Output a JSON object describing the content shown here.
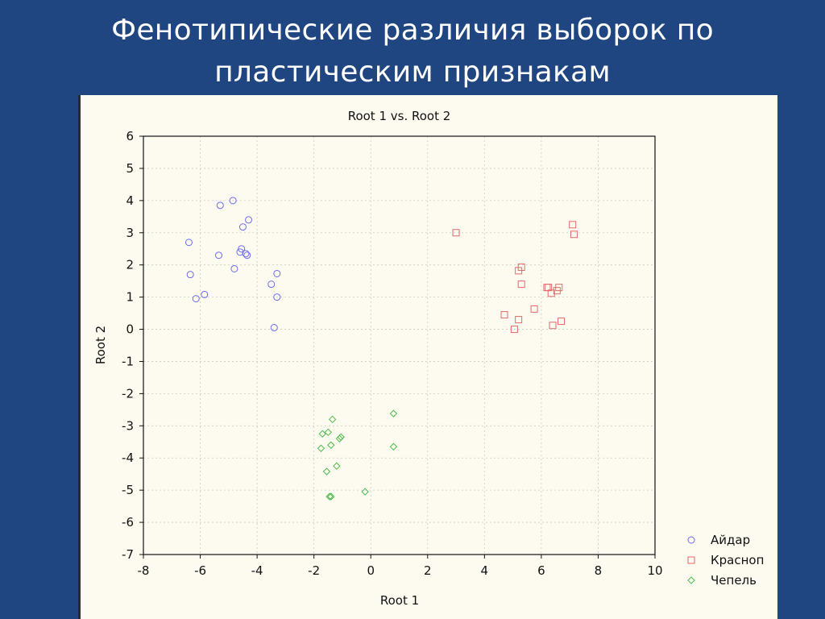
{
  "slide": {
    "title_line1": "Фенотипические различия выборок по",
    "title_line2": "пластическим признакам",
    "background_color": "#1f4680"
  },
  "chart_data": {
    "type": "scatter",
    "title": "Root 1 vs. Root 2",
    "xlabel": "Root 1",
    "ylabel": "Root 2",
    "xlim": [
      -8,
      10
    ],
    "ylim": [
      -7,
      6
    ],
    "xticks": [
      "-8",
      "-6",
      "-4",
      "-2",
      "0",
      "2",
      "4",
      "6",
      "8",
      "10"
    ],
    "yticks": [
      "6",
      "5",
      "4",
      "3",
      "2",
      "1",
      "0",
      "-1",
      "-2",
      "-3",
      "-4",
      "-5",
      "-6",
      "-7"
    ],
    "grid": true,
    "legend_position": "bottom-right",
    "series": [
      {
        "name": "Айдар",
        "marker": "circle",
        "color": "#6b6bef",
        "points": [
          [
            -6.4,
            2.7
          ],
          [
            -6.35,
            1.7
          ],
          [
            -6.15,
            0.95
          ],
          [
            -5.85,
            1.08
          ],
          [
            -5.3,
            3.85
          ],
          [
            -5.35,
            2.3
          ],
          [
            -4.85,
            4.0
          ],
          [
            -4.8,
            1.88
          ],
          [
            -4.55,
            2.5
          ],
          [
            -4.6,
            2.4
          ],
          [
            -4.5,
            3.18
          ],
          [
            -4.4,
            2.35
          ],
          [
            -4.35,
            2.3
          ],
          [
            -4.3,
            3.4
          ],
          [
            -3.5,
            1.4
          ],
          [
            -3.3,
            1.73
          ],
          [
            -3.3,
            1.0
          ],
          [
            -3.4,
            0.05
          ]
        ]
      },
      {
        "name": "Красноп",
        "marker": "square",
        "color": "#e06a6a",
        "points": [
          [
            3.0,
            3.0
          ],
          [
            4.7,
            0.45
          ],
          [
            5.05,
            0.0
          ],
          [
            5.2,
            0.3
          ],
          [
            5.2,
            1.82
          ],
          [
            5.3,
            1.93
          ],
          [
            5.3,
            1.4
          ],
          [
            5.75,
            0.63
          ],
          [
            6.2,
            1.3
          ],
          [
            6.25,
            1.3
          ],
          [
            6.35,
            1.12
          ],
          [
            6.4,
            0.12
          ],
          [
            6.55,
            1.2
          ],
          [
            6.62,
            1.3
          ],
          [
            6.7,
            0.25
          ],
          [
            7.1,
            3.25
          ],
          [
            7.15,
            2.95
          ]
        ]
      },
      {
        "name": "Чепель",
        "marker": "diamond",
        "color": "#4dbb4d",
        "points": [
          [
            -1.75,
            -3.7
          ],
          [
            -1.7,
            -3.25
          ],
          [
            -1.55,
            -4.42
          ],
          [
            -1.5,
            -3.2
          ],
          [
            -1.4,
            -3.6
          ],
          [
            -1.35,
            -2.8
          ],
          [
            -1.4,
            -5.2
          ],
          [
            -1.45,
            -5.2
          ],
          [
            -1.2,
            -4.25
          ],
          [
            -1.05,
            -3.35
          ],
          [
            -1.1,
            -3.4
          ],
          [
            -0.2,
            -5.05
          ],
          [
            0.8,
            -2.62
          ],
          [
            0.8,
            -3.65
          ]
        ]
      }
    ]
  }
}
